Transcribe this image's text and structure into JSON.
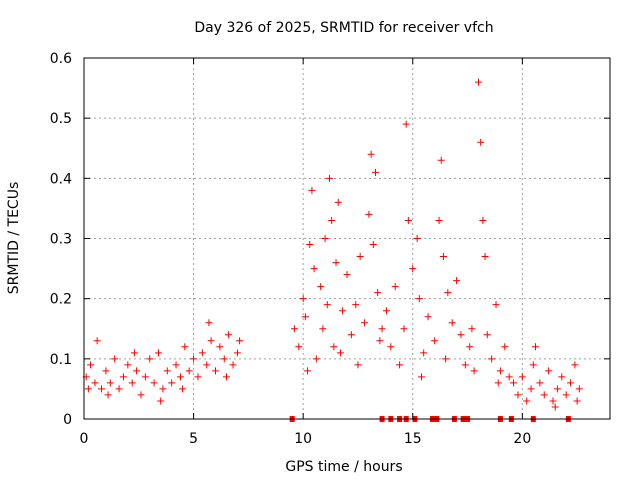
{
  "chart_data": {
    "type": "scatter",
    "title": "Day 326 of 2025, SRMTID for receiver vfch",
    "xlabel": "GPS time / hours",
    "ylabel": "SRMTID / TECUs",
    "xlim": [
      0,
      24
    ],
    "ylim": [
      0,
      0.6
    ],
    "x_ticks": [
      0,
      5,
      10,
      15,
      20
    ],
    "x_tick_labels": [
      "0",
      "5",
      "10",
      "15",
      "20"
    ],
    "y_ticks": [
      0,
      0.1,
      0.2,
      0.3,
      0.4,
      0.5,
      0.6
    ],
    "y_tick_labels": [
      "0",
      "0.1",
      "0.2",
      "0.3",
      "0.4",
      "0.5",
      "0.6"
    ],
    "grid": true,
    "series_color": "#ff0000",
    "zero_markers_x": [
      9.5,
      13.6,
      14.0,
      14.4,
      14.7,
      15.1,
      15.9,
      16.1,
      16.9,
      17.3,
      17.5,
      19.0,
      19.5,
      20.5,
      22.1
    ],
    "points": [
      [
        0.1,
        0.07
      ],
      [
        0.3,
        0.09
      ],
      [
        0.5,
        0.06
      ],
      [
        0.6,
        0.13
      ],
      [
        0.8,
        0.05
      ],
      [
        1.0,
        0.08
      ],
      [
        1.2,
        0.06
      ],
      [
        1.4,
        0.1
      ],
      [
        1.6,
        0.05
      ],
      [
        1.8,
        0.07
      ],
      [
        2.0,
        0.09
      ],
      [
        2.2,
        0.06
      ],
      [
        2.4,
        0.08
      ],
      [
        2.6,
        0.04
      ],
      [
        2.8,
        0.07
      ],
      [
        3.0,
        0.1
      ],
      [
        3.2,
        0.06
      ],
      [
        3.4,
        0.11
      ],
      [
        3.6,
        0.05
      ],
      [
        3.8,
        0.08
      ],
      [
        4.0,
        0.06
      ],
      [
        4.2,
        0.09
      ],
      [
        4.4,
        0.07
      ],
      [
        4.6,
        0.12
      ],
      [
        4.8,
        0.08
      ],
      [
        5.0,
        0.1
      ],
      [
        5.2,
        0.07
      ],
      [
        5.4,
        0.11
      ],
      [
        5.6,
        0.09
      ],
      [
        5.8,
        0.13
      ],
      [
        6.0,
        0.08
      ],
      [
        6.2,
        0.12
      ],
      [
        6.4,
        0.1
      ],
      [
        6.6,
        0.14
      ],
      [
        6.8,
        0.09
      ],
      [
        7.0,
        0.11
      ],
      [
        0.2,
        0.05
      ],
      [
        1.1,
        0.04
      ],
      [
        2.3,
        0.11
      ],
      [
        3.5,
        0.03
      ],
      [
        4.5,
        0.05
      ],
      [
        5.7,
        0.16
      ],
      [
        6.5,
        0.07
      ],
      [
        7.1,
        0.13
      ],
      [
        9.6,
        0.15
      ],
      [
        9.8,
        0.12
      ],
      [
        10.0,
        0.2
      ],
      [
        10.1,
        0.17
      ],
      [
        10.3,
        0.29
      ],
      [
        10.4,
        0.38
      ],
      [
        10.5,
        0.25
      ],
      [
        10.6,
        0.1
      ],
      [
        10.8,
        0.22
      ],
      [
        10.9,
        0.15
      ],
      [
        11.0,
        0.3
      ],
      [
        11.1,
        0.19
      ],
      [
        11.2,
        0.4
      ],
      [
        11.3,
        0.33
      ],
      [
        11.4,
        0.12
      ],
      [
        11.5,
        0.26
      ],
      [
        11.6,
        0.36
      ],
      [
        11.8,
        0.18
      ],
      [
        12.0,
        0.24
      ],
      [
        12.2,
        0.14
      ],
      [
        12.4,
        0.19
      ],
      [
        12.6,
        0.27
      ],
      [
        12.8,
        0.16
      ],
      [
        13.0,
        0.34
      ],
      [
        13.1,
        0.44
      ],
      [
        13.2,
        0.29
      ],
      [
        13.3,
        0.41
      ],
      [
        13.4,
        0.21
      ],
      [
        13.6,
        0.15
      ],
      [
        13.8,
        0.18
      ],
      [
        14.0,
        0.12
      ],
      [
        14.2,
        0.22
      ],
      [
        14.4,
        0.09
      ],
      [
        14.6,
        0.15
      ],
      [
        14.7,
        0.49
      ],
      [
        14.8,
        0.33
      ],
      [
        15.0,
        0.25
      ],
      [
        15.2,
        0.3
      ],
      [
        15.3,
        0.2
      ],
      [
        15.5,
        0.11
      ],
      [
        15.7,
        0.17
      ],
      [
        16.0,
        0.13
      ],
      [
        16.2,
        0.33
      ],
      [
        16.3,
        0.43
      ],
      [
        16.4,
        0.27
      ],
      [
        16.6,
        0.21
      ],
      [
        16.8,
        0.16
      ],
      [
        17.0,
        0.23
      ],
      [
        17.2,
        0.14
      ],
      [
        17.4,
        0.09
      ],
      [
        17.6,
        0.12
      ],
      [
        17.8,
        0.08
      ],
      [
        18.0,
        0.56
      ],
      [
        18.1,
        0.46
      ],
      [
        18.2,
        0.33
      ],
      [
        18.3,
        0.27
      ],
      [
        18.4,
        0.14
      ],
      [
        18.6,
        0.1
      ],
      [
        18.8,
        0.19
      ],
      [
        19.0,
        0.08
      ],
      [
        19.2,
        0.12
      ],
      [
        19.4,
        0.07
      ],
      [
        10.2,
        0.08
      ],
      [
        11.7,
        0.11
      ],
      [
        12.5,
        0.09
      ],
      [
        13.5,
        0.13
      ],
      [
        15.4,
        0.07
      ],
      [
        16.5,
        0.1
      ],
      [
        17.7,
        0.15
      ],
      [
        18.9,
        0.06
      ],
      [
        19.6,
        0.06
      ],
      [
        19.8,
        0.04
      ],
      [
        20.0,
        0.07
      ],
      [
        20.2,
        0.03
      ],
      [
        20.4,
        0.05
      ],
      [
        20.6,
        0.12
      ],
      [
        20.8,
        0.06
      ],
      [
        21.0,
        0.04
      ],
      [
        21.2,
        0.08
      ],
      [
        21.4,
        0.03
      ],
      [
        21.6,
        0.05
      ],
      [
        21.8,
        0.07
      ],
      [
        22.0,
        0.04
      ],
      [
        22.2,
        0.06
      ],
      [
        22.4,
        0.09
      ],
      [
        22.6,
        0.05
      ],
      [
        20.5,
        0.09
      ],
      [
        21.5,
        0.02
      ],
      [
        22.5,
        0.03
      ]
    ]
  }
}
